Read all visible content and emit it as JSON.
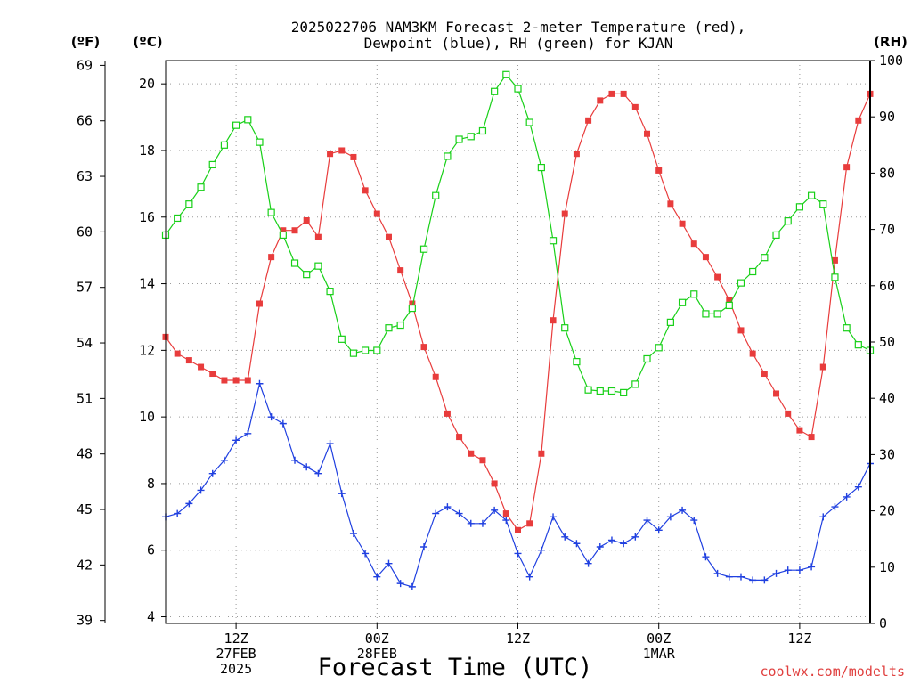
{
  "chart_data": {
    "type": "line",
    "title_line1": "2025022706 NAM3KM Forecast 2-meter Temperature (red),",
    "title_line2": "Dewpoint (blue), RH (green) for KJAN",
    "xlabel": "Forecast Time (UTC)",
    "credit": "coolwx.com/modelts",
    "units": {
      "fahrenheit": "(ºF)",
      "celsius": "(ºC)",
      "rh": "(RH)"
    },
    "axes": {
      "x_hours_range": [
        0,
        60
      ],
      "celsius_range": [
        3.8,
        20.7
      ],
      "fahrenheit_range": [
        38.84,
        69.26
      ],
      "rh_range": [
        0,
        100
      ]
    },
    "celsius_ticks": [
      "4",
      "6",
      "8",
      "10",
      "12",
      "14",
      "16",
      "18",
      "20"
    ],
    "fahrenheit_ticks": [
      "39",
      "42",
      "45",
      "48",
      "51",
      "54",
      "57",
      "60",
      "63",
      "66",
      "69"
    ],
    "rh_ticks": [
      "0",
      "10",
      "20",
      "30",
      "40",
      "50",
      "60",
      "70",
      "80",
      "90",
      "100"
    ],
    "x_ticks": [
      {
        "hour": 6,
        "labels": [
          "12Z",
          "27FEB",
          "2025"
        ]
      },
      {
        "hour": 18,
        "labels": [
          "00Z",
          "28FEB"
        ]
      },
      {
        "hour": 30,
        "labels": [
          "12Z"
        ]
      },
      {
        "hour": 42,
        "labels": [
          "00Z",
          "1MAR"
        ]
      },
      {
        "hour": 54,
        "labels": [
          "12Z"
        ]
      }
    ],
    "grid": true,
    "series": [
      {
        "name": "Temperature",
        "axis": "celsius",
        "color": "#e83c3c",
        "marker": "filled-square",
        "x": [
          0,
          1,
          2,
          3,
          4,
          5,
          6,
          7,
          8,
          9,
          10,
          11,
          12,
          13,
          14,
          15,
          16,
          17,
          18,
          19,
          20,
          21,
          22,
          23,
          24,
          25,
          26,
          27,
          28,
          29,
          30,
          31,
          32,
          33,
          34,
          35,
          36,
          37,
          38,
          39,
          40,
          41,
          42,
          43,
          44,
          45,
          46,
          47,
          48,
          49,
          50,
          51,
          52,
          53,
          54,
          55,
          56,
          57,
          58,
          59,
          60
        ],
        "values": [
          12.4,
          11.9,
          11.7,
          11.5,
          11.3,
          11.1,
          11.1,
          11.1,
          13.4,
          14.8,
          15.6,
          15.6,
          15.9,
          15.4,
          17.9,
          18.0,
          17.8,
          16.8,
          16.1,
          15.4,
          14.4,
          13.4,
          12.1,
          11.2,
          10.1,
          9.4,
          8.9,
          8.7,
          8.0,
          7.1,
          6.6,
          6.8,
          8.9,
          12.9,
          16.1,
          17.9,
          18.9,
          19.5,
          19.7,
          19.7,
          19.3,
          18.5,
          17.4,
          16.4,
          15.8,
          15.2,
          14.8,
          14.2,
          13.5,
          12.6,
          11.9,
          11.3,
          10.7,
          10.1,
          9.6,
          9.4,
          11.5,
          14.7,
          17.5,
          18.9,
          19.7
        ]
      },
      {
        "name": "Dewpoint",
        "axis": "celsius",
        "color": "#2040e0",
        "marker": "plus",
        "x": [
          0,
          1,
          2,
          3,
          4,
          5,
          6,
          7,
          8,
          9,
          10,
          11,
          12,
          13,
          14,
          15,
          16,
          17,
          18,
          19,
          20,
          21,
          22,
          23,
          24,
          25,
          26,
          27,
          28,
          29,
          30,
          31,
          32,
          33,
          34,
          35,
          36,
          37,
          38,
          39,
          40,
          41,
          42,
          43,
          44,
          45,
          46,
          47,
          48,
          49,
          50,
          51,
          52,
          53,
          54,
          55,
          56,
          57,
          58,
          59,
          60
        ],
        "values": [
          7.0,
          7.1,
          7.4,
          7.8,
          8.3,
          8.7,
          9.3,
          9.5,
          11.0,
          10.0,
          9.8,
          8.7,
          8.5,
          8.3,
          9.2,
          7.7,
          6.5,
          5.9,
          5.2,
          5.6,
          5.0,
          4.9,
          6.1,
          7.1,
          7.3,
          7.1,
          6.8,
          6.8,
          7.2,
          6.9,
          5.9,
          5.2,
          6.0,
          7.0,
          6.4,
          6.2,
          5.6,
          6.1,
          6.3,
          6.2,
          6.4,
          6.9,
          6.6,
          7.0,
          7.2,
          6.9,
          5.8,
          5.3,
          5.2,
          5.2,
          5.1,
          5.1,
          5.3,
          5.4,
          5.4,
          5.5,
          7.0,
          7.3,
          7.6,
          7.9,
          8.6
        ]
      },
      {
        "name": "RH",
        "axis": "rh",
        "color": "#18d018",
        "marker": "open-square",
        "x": [
          0,
          1,
          2,
          3,
          4,
          5,
          6,
          7,
          8,
          9,
          10,
          11,
          12,
          13,
          14,
          15,
          16,
          17,
          18,
          19,
          20,
          21,
          22,
          23,
          24,
          25,
          26,
          27,
          28,
          29,
          30,
          31,
          32,
          33,
          34,
          35,
          36,
          37,
          38,
          39,
          40,
          41,
          42,
          43,
          44,
          45,
          46,
          47,
          48,
          49,
          50,
          51,
          52,
          53,
          54,
          55,
          56,
          57,
          58,
          59,
          60
        ],
        "values": [
          69,
          72,
          74.5,
          77.5,
          81.5,
          85,
          88.5,
          89.5,
          85.5,
          73,
          69,
          64,
          62,
          63.5,
          59,
          50.5,
          48,
          48.5,
          48.5,
          52.5,
          53,
          56,
          66.5,
          76,
          83,
          86,
          86.5,
          87.5,
          94.5,
          97.5,
          95,
          89,
          81,
          68,
          52.5,
          46.5,
          41.5,
          41.3,
          41.3,
          41,
          42.5,
          47,
          49,
          53.5,
          57,
          58.5,
          55,
          55,
          56.5,
          60.5,
          62.5,
          65,
          69,
          71.5,
          74,
          76,
          74.5,
          61.5,
          52.5,
          49.5,
          48.5
        ]
      }
    ]
  }
}
